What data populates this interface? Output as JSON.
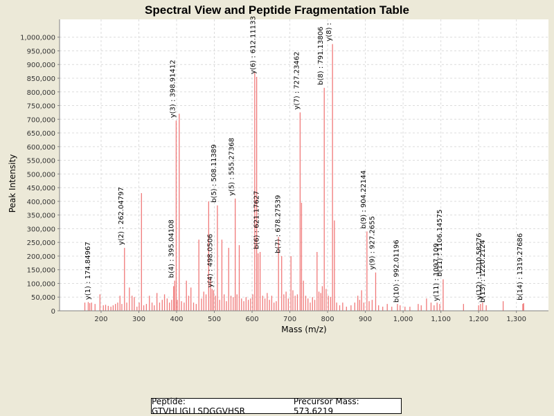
{
  "chart_data": {
    "type": "bar",
    "title": "Spectral View and Peptide Fragmentation Table",
    "xlabel": "Mass (m/z)",
    "ylabel": "Peak Intensity",
    "xlim": [
      90,
      1385
    ],
    "ylim": [
      0,
      1065000
    ],
    "grid": true,
    "x_ticks": [
      200,
      300,
      400,
      500,
      600,
      700,
      800,
      900,
      1000,
      1100,
      1200,
      1300
    ],
    "x_tick_labels": [
      "200",
      "300",
      "400",
      "500",
      "600",
      "700",
      "800",
      "900",
      "1,000",
      "1,100",
      "1,200",
      "1,300"
    ],
    "y_ticks": [
      0,
      50000,
      100000,
      150000,
      200000,
      250000,
      300000,
      350000,
      400000,
      450000,
      500000,
      550000,
      600000,
      650000,
      700000,
      750000,
      800000,
      850000,
      900000,
      950000,
      1000000
    ],
    "y_tick_labels": [
      "0",
      "50,000",
      "100,000",
      "150,000",
      "200,000",
      "250,000",
      "300,000",
      "350,000",
      "400,000",
      "450,000",
      "500,000",
      "550,000",
      "600,000",
      "650,000",
      "700,000",
      "750,000",
      "800,000",
      "850,000",
      "900,000",
      "950,000",
      "1,000,000"
    ],
    "series_color": "#f07878",
    "peaks": [
      {
        "mz": 157,
        "intensity": 30000
      },
      {
        "mz": 166,
        "intensity": 32000
      },
      {
        "mz": 170,
        "intensity": 28000
      },
      {
        "mz": 174.8,
        "intensity": 30000
      },
      {
        "mz": 184,
        "intensity": 25000
      },
      {
        "mz": 197,
        "intensity": 60000
      },
      {
        "mz": 206,
        "intensity": 20000
      },
      {
        "mz": 212,
        "intensity": 22000
      },
      {
        "mz": 219,
        "intensity": 18000
      },
      {
        "mz": 226,
        "intensity": 15000
      },
      {
        "mz": 232,
        "intensity": 20000
      },
      {
        "mz": 238,
        "intensity": 25000
      },
      {
        "mz": 244,
        "intensity": 30000
      },
      {
        "mz": 250,
        "intensity": 55000
      },
      {
        "mz": 255,
        "intensity": 25000
      },
      {
        "mz": 262,
        "intensity": 230000
      },
      {
        "mz": 268,
        "intensity": 30000
      },
      {
        "mz": 275,
        "intensity": 85000
      },
      {
        "mz": 282,
        "intensity": 55000
      },
      {
        "mz": 288,
        "intensity": 50000
      },
      {
        "mz": 295,
        "intensity": 15000
      },
      {
        "mz": 301,
        "intensity": 30000
      },
      {
        "mz": 307,
        "intensity": 430000
      },
      {
        "mz": 313,
        "intensity": 20000
      },
      {
        "mz": 320,
        "intensity": 25000
      },
      {
        "mz": 328,
        "intensity": 55000
      },
      {
        "mz": 335,
        "intensity": 30000
      },
      {
        "mz": 341,
        "intensity": 20000
      },
      {
        "mz": 348,
        "intensity": 65000
      },
      {
        "mz": 355,
        "intensity": 30000
      },
      {
        "mz": 362,
        "intensity": 40000
      },
      {
        "mz": 368,
        "intensity": 60000
      },
      {
        "mz": 375,
        "intensity": 45000
      },
      {
        "mz": 381,
        "intensity": 30000
      },
      {
        "mz": 387,
        "intensity": 40000
      },
      {
        "mz": 392,
        "intensity": 90000
      },
      {
        "mz": 395,
        "intensity": 110000
      },
      {
        "mz": 398.9,
        "intensity": 695000
      },
      {
        "mz": 402,
        "intensity": 40000
      },
      {
        "mz": 407,
        "intensity": 720000
      },
      {
        "mz": 413,
        "intensity": 35000
      },
      {
        "mz": 420,
        "intensity": 30000
      },
      {
        "mz": 426,
        "intensity": 110000
      },
      {
        "mz": 432,
        "intensity": 55000
      },
      {
        "mz": 438,
        "intensity": 85000
      },
      {
        "mz": 445,
        "intensity": 30000
      },
      {
        "mz": 452,
        "intensity": 25000
      },
      {
        "mz": 459,
        "intensity": 260000
      },
      {
        "mz": 466,
        "intensity": 45000
      },
      {
        "mz": 472,
        "intensity": 70000
      },
      {
        "mz": 478,
        "intensity": 60000
      },
      {
        "mz": 485,
        "intensity": 400000
      },
      {
        "mz": 490,
        "intensity": 120000
      },
      {
        "mz": 494,
        "intensity": 80000
      },
      {
        "mz": 498,
        "intensity": 75000
      },
      {
        "mz": 503,
        "intensity": 55000
      },
      {
        "mz": 508.1,
        "intensity": 385000
      },
      {
        "mz": 514,
        "intensity": 40000
      },
      {
        "mz": 520,
        "intensity": 260000
      },
      {
        "mz": 526,
        "intensity": 60000
      },
      {
        "mz": 532,
        "intensity": 35000
      },
      {
        "mz": 538,
        "intensity": 230000
      },
      {
        "mz": 544,
        "intensity": 55000
      },
      {
        "mz": 550,
        "intensity": 50000
      },
      {
        "mz": 555.3,
        "intensity": 410000
      },
      {
        "mz": 560,
        "intensity": 60000
      },
      {
        "mz": 566,
        "intensity": 240000
      },
      {
        "mz": 572,
        "intensity": 45000
      },
      {
        "mz": 578,
        "intensity": 35000
      },
      {
        "mz": 584,
        "intensity": 50000
      },
      {
        "mz": 590,
        "intensity": 40000
      },
      {
        "mz": 596,
        "intensity": 45000
      },
      {
        "mz": 602,
        "intensity": 60000
      },
      {
        "mz": 607,
        "intensity": 870000
      },
      {
        "mz": 612.1,
        "intensity": 855000
      },
      {
        "mz": 616,
        "intensity": 210000
      },
      {
        "mz": 621.2,
        "intensity": 215000
      },
      {
        "mz": 628,
        "intensity": 55000
      },
      {
        "mz": 634,
        "intensity": 45000
      },
      {
        "mz": 640,
        "intensity": 65000
      },
      {
        "mz": 646,
        "intensity": 40000
      },
      {
        "mz": 652,
        "intensity": 55000
      },
      {
        "mz": 658,
        "intensity": 30000
      },
      {
        "mz": 664,
        "intensity": 35000
      },
      {
        "mz": 670,
        "intensity": 270000
      },
      {
        "mz": 678.3,
        "intensity": 200000
      },
      {
        "mz": 684,
        "intensity": 60000
      },
      {
        "mz": 690,
        "intensity": 70000
      },
      {
        "mz": 696,
        "intensity": 45000
      },
      {
        "mz": 703,
        "intensity": 200000
      },
      {
        "mz": 708,
        "intensity": 75000
      },
      {
        "mz": 714,
        "intensity": 55000
      },
      {
        "mz": 720,
        "intensity": 60000
      },
      {
        "mz": 727.2,
        "intensity": 725000
      },
      {
        "mz": 731,
        "intensity": 395000
      },
      {
        "mz": 736,
        "intensity": 110000
      },
      {
        "mz": 742,
        "intensity": 55000
      },
      {
        "mz": 748,
        "intensity": 45000
      },
      {
        "mz": 754,
        "intensity": 30000
      },
      {
        "mz": 760,
        "intensity": 50000
      },
      {
        "mz": 766,
        "intensity": 40000
      },
      {
        "mz": 772,
        "intensity": 215000
      },
      {
        "mz": 777,
        "intensity": 70000
      },
      {
        "mz": 782,
        "intensity": 65000
      },
      {
        "mz": 786,
        "intensity": 90000
      },
      {
        "mz": 791.1,
        "intensity": 815000
      },
      {
        "mz": 796,
        "intensity": 80000
      },
      {
        "mz": 802,
        "intensity": 55000
      },
      {
        "mz": 808,
        "intensity": 50000
      },
      {
        "mz": 813,
        "intensity": 975000
      },
      {
        "mz": 818,
        "intensity": 330000
      },
      {
        "mz": 824,
        "intensity": 30000
      },
      {
        "mz": 832,
        "intensity": 20000
      },
      {
        "mz": 840,
        "intensity": 30000
      },
      {
        "mz": 850,
        "intensity": 15000
      },
      {
        "mz": 862,
        "intensity": 20000
      },
      {
        "mz": 872,
        "intensity": 30000
      },
      {
        "mz": 880,
        "intensity": 55000
      },
      {
        "mz": 885,
        "intensity": 40000
      },
      {
        "mz": 890,
        "intensity": 75000
      },
      {
        "mz": 896,
        "intensity": 30000
      },
      {
        "mz": 904.2,
        "intensity": 290000
      },
      {
        "mz": 910,
        "intensity": 35000
      },
      {
        "mz": 918,
        "intensity": 40000
      },
      {
        "mz": 927.3,
        "intensity": 140000
      },
      {
        "mz": 935,
        "intensity": 20000
      },
      {
        "mz": 946,
        "intensity": 15000
      },
      {
        "mz": 958,
        "intensity": 25000
      },
      {
        "mz": 970,
        "intensity": 15000
      },
      {
        "mz": 985,
        "intensity": 25000
      },
      {
        "mz": 992,
        "intensity": 20000
      },
      {
        "mz": 1005,
        "intensity": 15000
      },
      {
        "mz": 1018,
        "intensity": 15000
      },
      {
        "mz": 1040,
        "intensity": 25000
      },
      {
        "mz": 1048,
        "intensity": 20000
      },
      {
        "mz": 1062,
        "intensity": 45000
      },
      {
        "mz": 1074,
        "intensity": 30000
      },
      {
        "mz": 1082,
        "intensity": 20000
      },
      {
        "mz": 1090,
        "intensity": 30000
      },
      {
        "mz": 1097.1,
        "intensity": 25000
      },
      {
        "mz": 1106.1,
        "intensity": 115000
      },
      {
        "mz": 1160,
        "intensity": 25000
      },
      {
        "mz": 1200,
        "intensity": 20000
      },
      {
        "mz": 1205,
        "intensity": 25000
      },
      {
        "mz": 1210.6,
        "intensity": 30000
      },
      {
        "mz": 1220.2,
        "intensity": 20000
      },
      {
        "mz": 1265,
        "intensity": 35000
      },
      {
        "mz": 1317,
        "intensity": 25000
      },
      {
        "mz": 1319.3,
        "intensity": 28000
      }
    ],
    "annotations": [
      {
        "mz": 174.8,
        "intensity": 30000,
        "label": "y(1) : 174.84967"
      },
      {
        "mz": 262,
        "intensity": 230000,
        "label": "y(2) : 262.04797"
      },
      {
        "mz": 395,
        "intensity": 110000,
        "label": "b(4) : 395.04108"
      },
      {
        "mz": 398.9,
        "intensity": 695000,
        "label": "y(3) : 398.91412"
      },
      {
        "mz": 498,
        "intensity": 75000,
        "label": "y(4) : 498.0506"
      },
      {
        "mz": 508.1,
        "intensity": 385000,
        "label": "b(5) : 508.11389"
      },
      {
        "mz": 555.3,
        "intensity": 410000,
        "label": "y(5) : 555.27368"
      },
      {
        "mz": 612.1,
        "intensity": 855000,
        "label": "y(6) : 612.11133"
      },
      {
        "mz": 621.2,
        "intensity": 215000,
        "label": "b(6) : 621.17627"
      },
      {
        "mz": 678.3,
        "intensity": 200000,
        "label": "b(7) : 678.27539"
      },
      {
        "mz": 727.2,
        "intensity": 725000,
        "label": "y(7) : 727.23462"
      },
      {
        "mz": 791.1,
        "intensity": 815000,
        "label": "b(8) : 791.13806"
      },
      {
        "mz": 813,
        "intensity": 975000,
        "label": "y(8) :"
      },
      {
        "mz": 904.2,
        "intensity": 290000,
        "label": "b(9) : 904.22144"
      },
      {
        "mz": 927.3,
        "intensity": 140000,
        "label": "y(9) : 927.2655"
      },
      {
        "mz": 992,
        "intensity": 20000,
        "label": "b(10) : 992.01196"
      },
      {
        "mz": 1097.1,
        "intensity": 25000,
        "label": "y(11) : 1097.109"
      },
      {
        "mz": 1106.1,
        "intensity": 115000,
        "label": "b(11) : 1106.14575"
      },
      {
        "mz": 1210.6,
        "intensity": 30000,
        "label": "y(12) : 1210.58276"
      },
      {
        "mz": 1220.2,
        "intensity": 20000,
        "label": "b(13) : 1220.2124"
      },
      {
        "mz": 1319.3,
        "intensity": 28000,
        "label": "b(14) : 1319.27686"
      }
    ]
  },
  "info": {
    "peptide": "Peptide: GTVHLIGLLSDGGVHSR",
    "precursor": "Precursor Mass: 573.6219"
  }
}
